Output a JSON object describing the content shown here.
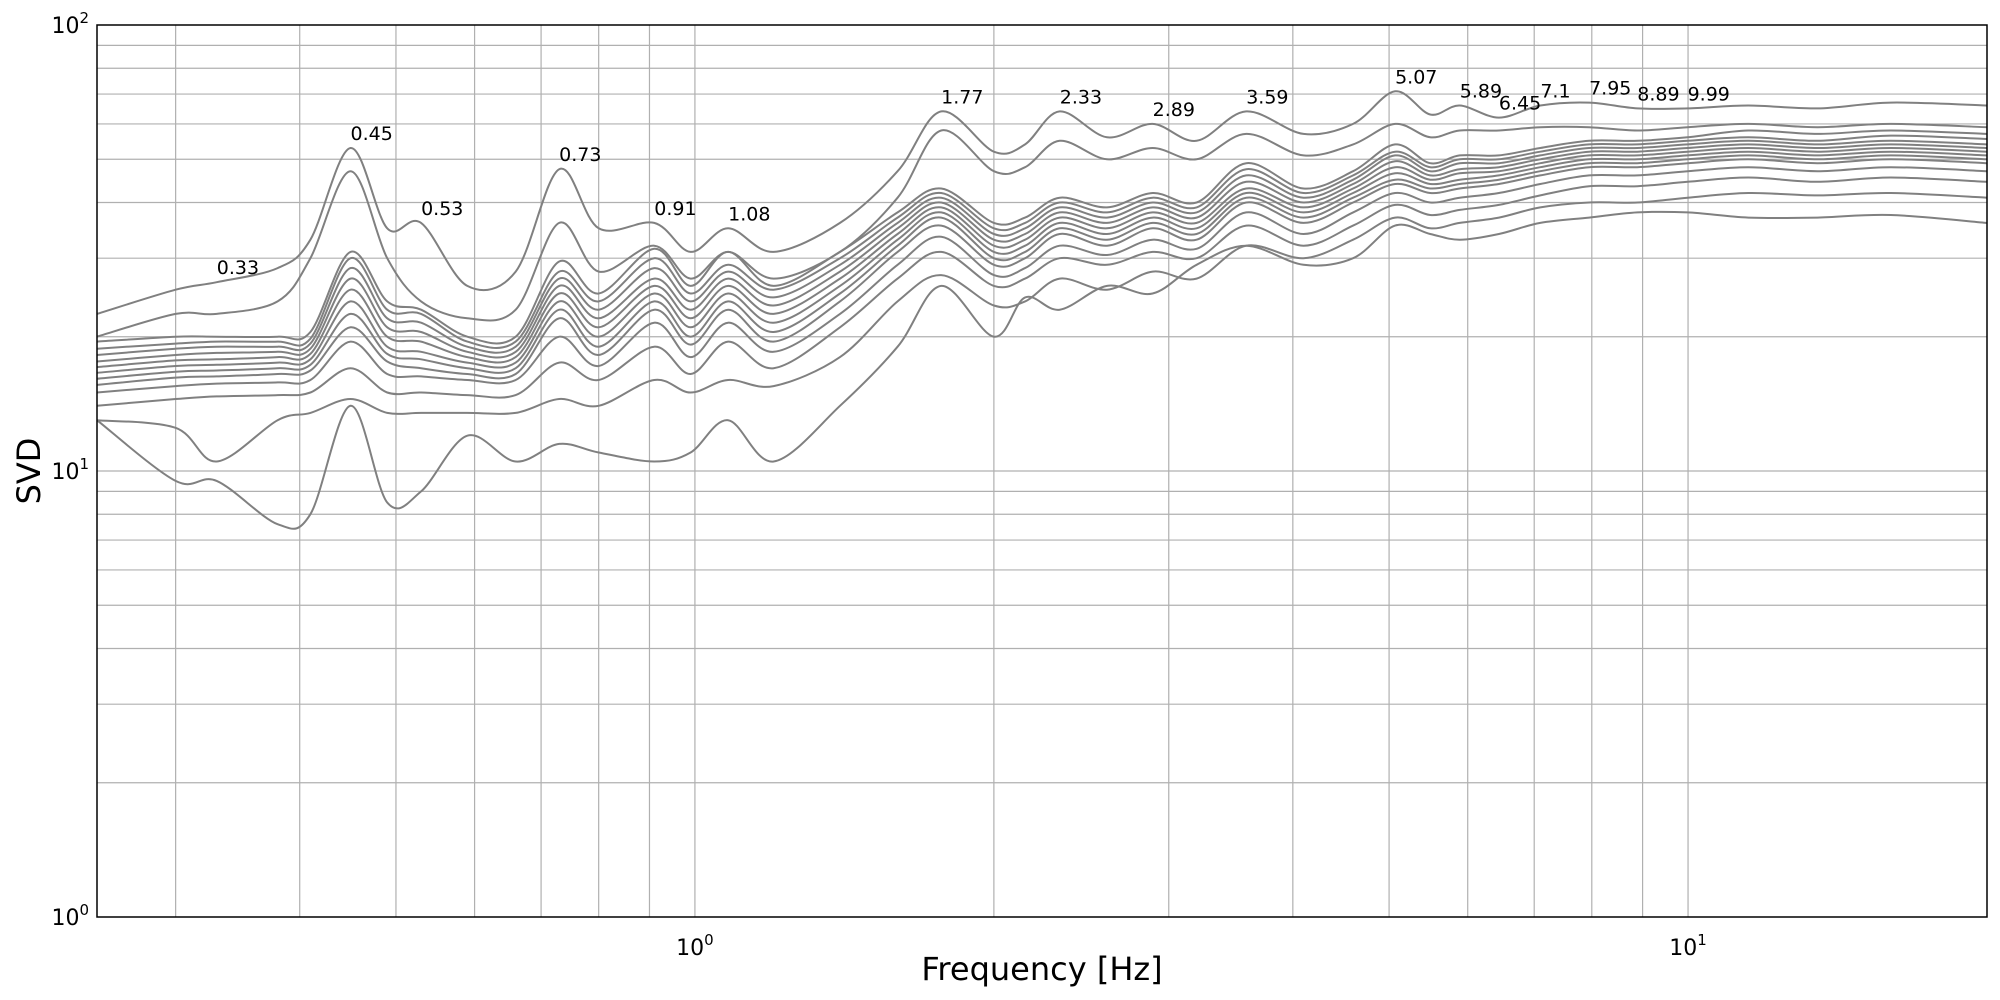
{
  "chart_data": {
    "type": "line",
    "xlabel": "Frequency [Hz]",
    "ylabel": "SVD",
    "x_scale": "log",
    "y_scale": "log",
    "xlim": [
      0.25,
      20
    ],
    "ylim": [
      1,
      100
    ],
    "grid": true,
    "x_ticks": [
      {
        "base": "10",
        "exp": "0",
        "value": 1
      },
      {
        "base": "10",
        "exp": "1",
        "value": 10
      }
    ],
    "y_ticks": [
      {
        "base": "10",
        "exp": "0",
        "value": 1
      },
      {
        "base": "10",
        "exp": "1",
        "value": 10
      },
      {
        "base": "10",
        "exp": "2",
        "value": 100
      }
    ],
    "peaks": [
      {
        "label": "0.33",
        "x": 0.33,
        "y": 26.5
      },
      {
        "label": "0.45",
        "x": 0.45,
        "y": 53
      },
      {
        "label": "0.53",
        "x": 0.53,
        "y": 36
      },
      {
        "label": "0.73",
        "x": 0.73,
        "y": 47.5
      },
      {
        "label": "0.91",
        "x": 0.91,
        "y": 36
      },
      {
        "label": "1.08",
        "x": 1.08,
        "y": 35
      },
      {
        "label": "1.77",
        "x": 1.77,
        "y": 64
      },
      {
        "label": "2.33",
        "x": 2.33,
        "y": 64
      },
      {
        "label": "2.89",
        "x": 2.89,
        "y": 60
      },
      {
        "label": "3.59",
        "x": 3.59,
        "y": 64
      },
      {
        "label": "5.07",
        "x": 5.07,
        "y": 71
      },
      {
        "label": "5.89",
        "x": 5.89,
        "y": 66
      },
      {
        "label": "6.45",
        "x": 6.45,
        "y": 62
      },
      {
        "label": "7.1",
        "x": 7.1,
        "y": 66
      },
      {
        "label": "7.95",
        "x": 7.95,
        "y": 67
      },
      {
        "label": "8.89",
        "x": 8.89,
        "y": 65
      },
      {
        "label": "9.99",
        "x": 9.99,
        "y": 65
      }
    ],
    "x": [
      0.25,
      0.3,
      0.33,
      0.38,
      0.41,
      0.45,
      0.49,
      0.53,
      0.59,
      0.66,
      0.73,
      0.8,
      0.91,
      0.99,
      1.08,
      1.2,
      1.4,
      1.6,
      1.77,
      2.0,
      2.15,
      2.33,
      2.6,
      2.89,
      3.2,
      3.59,
      4.1,
      4.6,
      5.07,
      5.5,
      5.89,
      6.45,
      7.1,
      7.95,
      8.89,
      9.99,
      11.5,
      13.5,
      16,
      20
    ],
    "series": [
      {
        "values": [
          22.5,
          25.5,
          26.5,
          28.5,
          33,
          53,
          35,
          36,
          26,
          28,
          47.5,
          35,
          36,
          31,
          35,
          31,
          36,
          47,
          64,
          52,
          54,
          64,
          56,
          60,
          55,
          64,
          57,
          60,
          71,
          63,
          66,
          62,
          66,
          67,
          65,
          65,
          66,
          65,
          67,
          66
        ]
      },
      {
        "values": [
          20,
          22.5,
          22.5,
          24,
          30,
          47,
          30,
          24,
          22,
          23,
          36,
          28,
          32,
          27,
          31,
          27,
          31,
          41,
          58,
          47,
          48,
          55,
          50,
          53,
          50,
          57,
          51,
          54,
          60,
          56,
          58,
          58,
          59,
          59,
          58,
          59,
          60,
          59,
          60,
          59
        ]
      },
      {
        "values": [
          19.5,
          20,
          20,
          20,
          20.5,
          31,
          24,
          23,
          20,
          20,
          29.5,
          25,
          31.5,
          26,
          31,
          26,
          31,
          38,
          43,
          36,
          37,
          41,
          39,
          42,
          40,
          49,
          43,
          47,
          54,
          49,
          51,
          51,
          53,
          55,
          55,
          56,
          58,
          57,
          58,
          57
        ]
      },
      {
        "values": [
          18.8,
          19.3,
          19.5,
          19.5,
          19.8,
          30,
          23,
          22.5,
          19.5,
          19.5,
          28,
          24,
          30,
          25,
          29,
          25.5,
          30,
          37,
          42,
          35,
          36,
          40,
          38,
          41,
          39,
          47.5,
          42,
          46,
          52,
          48,
          50,
          50,
          52,
          54,
          54,
          55,
          56,
          55,
          56.5,
          55.5
        ]
      },
      {
        "values": [
          18.2,
          18.8,
          19,
          19,
          19.3,
          28.5,
          22,
          21.5,
          19,
          19,
          27,
          23,
          28.5,
          24,
          28,
          24.5,
          29,
          36,
          41,
          34,
          35,
          39,
          37,
          40,
          38,
          46,
          41,
          45,
          51,
          47,
          49,
          49,
          51,
          53,
          53,
          54,
          55,
          54,
          55,
          54
        ]
      },
      {
        "values": [
          17.6,
          18.2,
          18.4,
          18.5,
          18.8,
          27,
          21,
          20.5,
          18.5,
          18.5,
          26,
          22,
          27,
          23,
          27,
          23.5,
          28,
          35,
          40,
          33,
          34,
          38,
          36,
          39,
          37,
          44.5,
          40,
          44,
          49.5,
          46,
          47.5,
          48,
          50,
          52,
          52,
          53,
          54,
          53,
          54,
          53
        ]
      },
      {
        "values": [
          17.1,
          17.7,
          17.8,
          18,
          18.3,
          25.5,
          20,
          19.5,
          18,
          18,
          25,
          21,
          26,
          22,
          26,
          22.5,
          27,
          34,
          39,
          32,
          33,
          37,
          35,
          38,
          36,
          43,
          39,
          43,
          48,
          45,
          46.5,
          47,
          49,
          51,
          51,
          52,
          53,
          52,
          53,
          52
        ]
      },
      {
        "values": [
          16.6,
          17.2,
          17.3,
          17.5,
          17.8,
          24,
          19,
          18.5,
          17.5,
          17.5,
          24,
          20,
          25,
          21,
          25,
          21.5,
          26,
          33,
          38,
          31,
          32,
          36,
          34,
          37,
          35,
          42,
          38,
          42,
          46.5,
          44,
          45,
          46,
          48,
          50,
          50,
          51,
          52,
          51,
          52,
          51
        ]
      },
      {
        "values": [
          16.1,
          16.7,
          16.8,
          17,
          17.3,
          22.5,
          18.3,
          17.8,
          17,
          17,
          23,
          19,
          24,
          20,
          24,
          20.5,
          25,
          32,
          37,
          30,
          31,
          35,
          33,
          36,
          34,
          41,
          37,
          41,
          45,
          43,
          44,
          45,
          47,
          49,
          49,
          50,
          51,
          50,
          51,
          50
        ]
      },
      {
        "values": [
          15.6,
          16.2,
          16.3,
          16.5,
          16.8,
          21,
          17.6,
          17,
          16.5,
          16.5,
          22,
          18.2,
          23,
          19.2,
          23,
          19.5,
          24,
          31,
          35.5,
          29,
          30,
          34,
          32,
          35,
          33,
          40,
          36,
          40,
          44,
          42,
          43,
          44,
          46,
          48,
          48,
          49,
          50,
          49,
          50,
          49
        ]
      },
      {
        "values": [
          15,
          15.5,
          15.7,
          15.8,
          16,
          19.5,
          16.5,
          16.3,
          16,
          16,
          20,
          17.2,
          21.5,
          18,
          21.5,
          18.5,
          22.5,
          29,
          33.5,
          27.5,
          28.5,
          32,
          30.5,
          33,
          31.5,
          38,
          34,
          38,
          42,
          40,
          41,
          42,
          44,
          46,
          46,
          47,
          48,
          47,
          48,
          47
        ]
      },
      {
        "values": [
          14,
          14.5,
          14.7,
          14.8,
          15,
          17,
          15,
          15,
          14.8,
          14.8,
          17.5,
          16,
          19,
          16.5,
          19.5,
          17,
          21,
          27,
          31,
          26,
          27,
          30,
          29,
          31,
          30,
          35.5,
          32,
          35.5,
          39.5,
          37.5,
          38.5,
          39.5,
          41.5,
          43.5,
          43.5,
          44.5,
          45.5,
          44.5,
          45.5,
          44.5
        ]
      },
      {
        "values": [
          13,
          12.5,
          10.5,
          13,
          13.5,
          14.5,
          13.5,
          13.5,
          13.5,
          13.5,
          14.5,
          14,
          16,
          15,
          16,
          15.5,
          18,
          24,
          27.5,
          23.5,
          24,
          27,
          25.5,
          28,
          27,
          32,
          30,
          33,
          37,
          35,
          36,
          37,
          39,
          40,
          40,
          41,
          42,
          41.5,
          42,
          41
        ]
      },
      {
        "values": [
          13,
          9.5,
          9.5,
          7.6,
          8,
          14,
          8.5,
          9,
          12,
          10.5,
          11.5,
          11,
          10.5,
          11,
          13,
          10.5,
          14,
          19,
          26,
          20,
          24.5,
          23,
          26,
          25,
          29,
          32,
          29,
          30,
          35.5,
          34,
          33,
          34,
          36,
          37,
          38,
          38,
          37,
          37,
          37.5,
          36
        ]
      }
    ]
  }
}
